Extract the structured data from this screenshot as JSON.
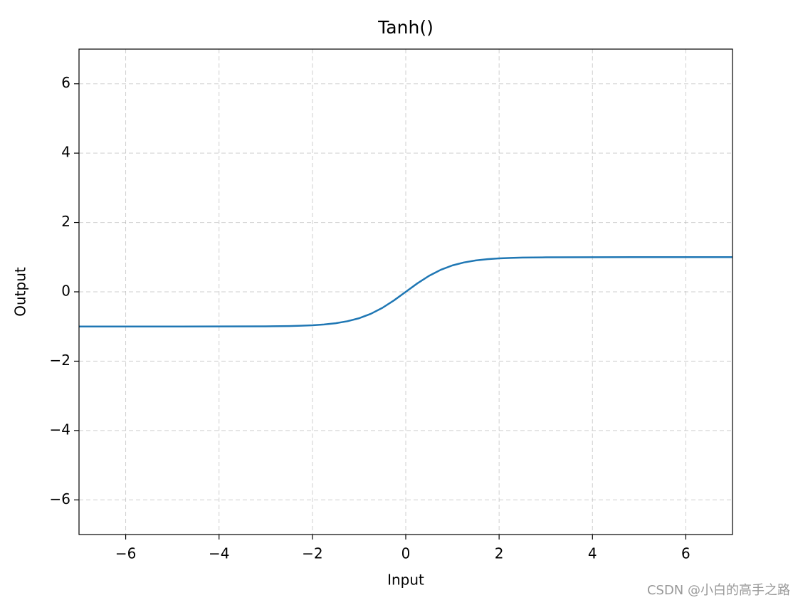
{
  "chart_data": {
    "type": "line",
    "title": "Tanh()",
    "x_label": "Input",
    "y_label": "Output",
    "x": [
      -7,
      -6,
      -5,
      -4,
      -3,
      -2.5,
      -2.25,
      -2,
      -1.75,
      -1.5,
      -1.25,
      -1,
      -0.75,
      -0.5,
      -0.25,
      0,
      0.25,
      0.5,
      0.75,
      1,
      1.25,
      1.5,
      1.75,
      2,
      2.25,
      2.5,
      3,
      4,
      5,
      6,
      7
    ],
    "values": [
      -1,
      -1,
      -1,
      -0.999,
      -0.995,
      -0.987,
      -0.978,
      -0.964,
      -0.941,
      -0.905,
      -0.848,
      -0.762,
      -0.635,
      -0.462,
      -0.245,
      0,
      0.245,
      0.462,
      0.635,
      0.762,
      0.848,
      0.905,
      0.941,
      0.964,
      0.978,
      0.987,
      0.995,
      0.999,
      1,
      1,
      1
    ],
    "color": "#1f77b4",
    "xlim": [
      -7,
      7
    ],
    "ylim": [
      -7,
      7
    ],
    "xticks": [
      {
        "value": -6,
        "label": "−6"
      },
      {
        "value": -4,
        "label": "−4"
      },
      {
        "value": -2,
        "label": "−2"
      },
      0,
      2,
      4,
      6
    ],
    "yticks": [
      {
        "value": -6,
        "label": "−6"
      },
      {
        "value": -4,
        "label": "−4"
      },
      {
        "value": -2,
        "label": "−2"
      },
      0,
      2,
      4,
      6
    ],
    "grid": true
  },
  "watermark": "CSDN @小白的高手之路"
}
